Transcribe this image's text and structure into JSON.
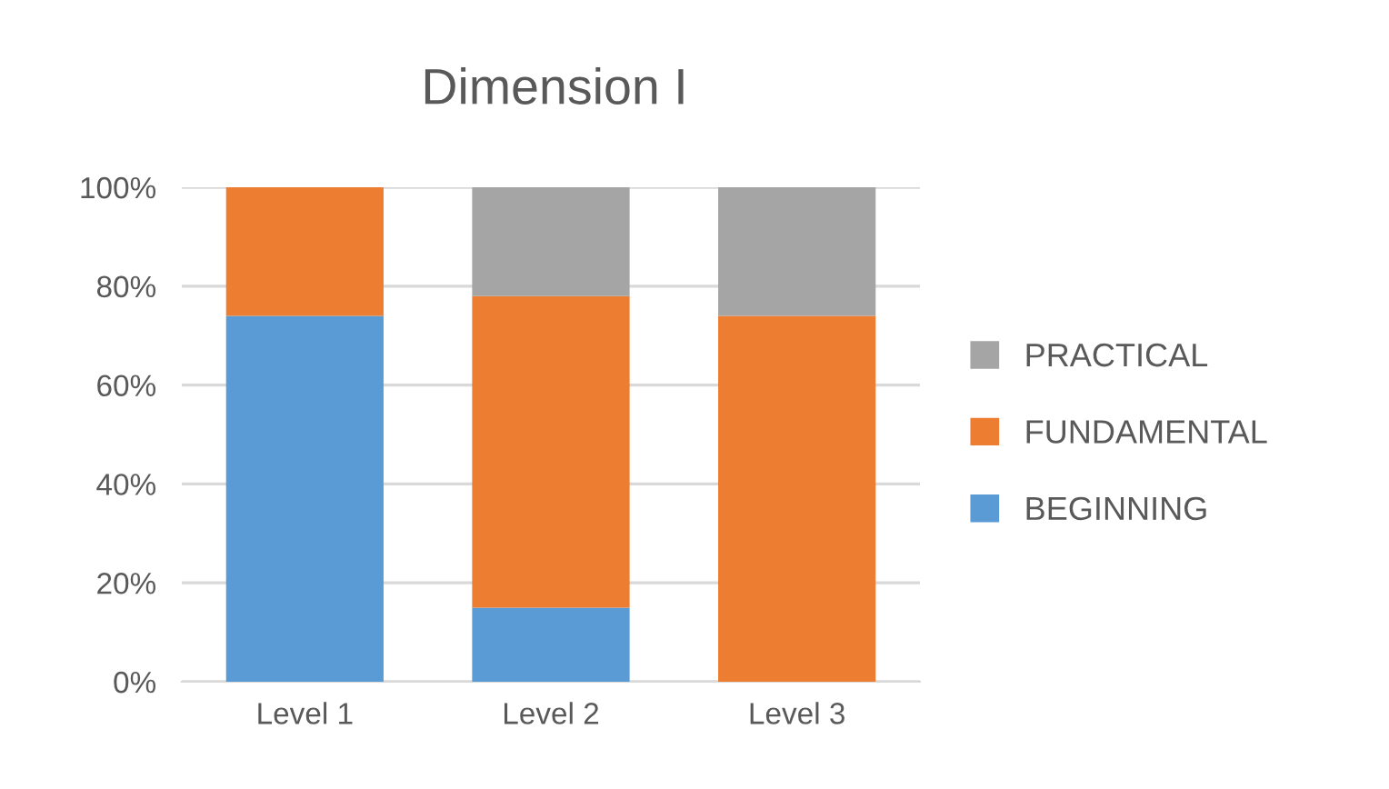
{
  "chart_data": {
    "type": "bar",
    "title": "Dimension I",
    "categories": [
      "Level 1",
      "Level 2",
      "Level 3"
    ],
    "series": [
      {
        "name": "BEGINNING",
        "color": "#5b9bd5",
        "values": [
          74,
          15,
          0
        ]
      },
      {
        "name": "FUNDAMENTAL",
        "color": "#ed7d31",
        "values": [
          26,
          63,
          74
        ]
      },
      {
        "name": "PRACTICAL",
        "color": "#a5a5a5",
        "values": [
          0,
          22,
          26
        ]
      }
    ],
    "stacked": true,
    "ylim": [
      0,
      100
    ],
    "yticks": [
      {
        "value": 0,
        "label": "0%"
      },
      {
        "value": 20,
        "label": "20%"
      },
      {
        "value": 40,
        "label": "40%"
      },
      {
        "value": 60,
        "label": "60%"
      },
      {
        "value": 80,
        "label": "80%"
      },
      {
        "value": 100,
        "label": "100%"
      }
    ],
    "grid": "y",
    "legend": "right"
  }
}
